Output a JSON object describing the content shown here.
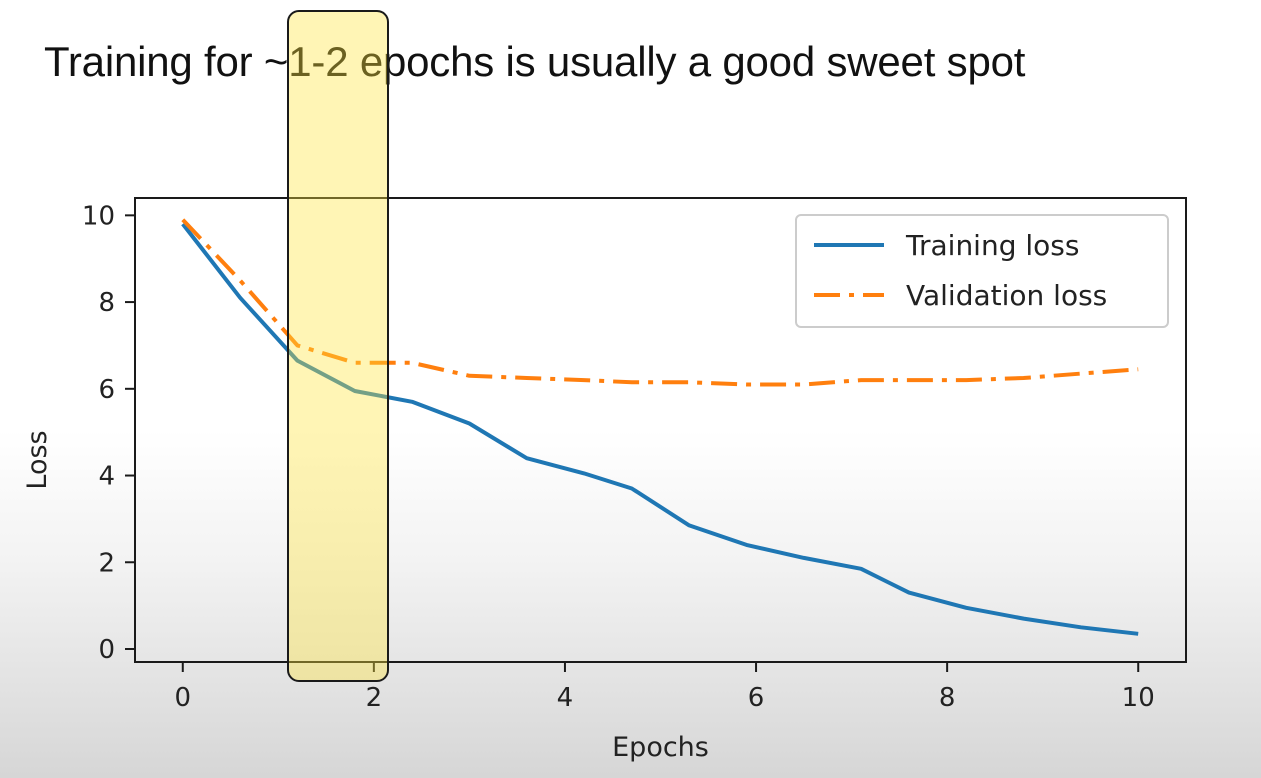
{
  "slide": {
    "title": "Training for ~1-2 epochs is usually a good sweet spot"
  },
  "chart_data": {
    "type": "line",
    "title": "",
    "xlabel": "Epochs",
    "ylabel": "Loss",
    "xlim": [
      -0.5,
      10.5
    ],
    "ylim": [
      -0.3,
      10.4
    ],
    "x_ticks": [
      0,
      2,
      4,
      6,
      8,
      10
    ],
    "y_ticks": [
      0,
      2,
      4,
      6,
      8,
      10
    ],
    "x_tick_labels": [
      "0",
      "2",
      "4",
      "6",
      "8",
      "10"
    ],
    "y_tick_labels": [
      "0",
      "2",
      "4",
      "6",
      "8",
      "10"
    ],
    "grid": false,
    "legend_position": "upper-right",
    "series": [
      {
        "name": "Training loss",
        "color": "#1f77b4",
        "line_style": "solid",
        "x": [
          0,
          0.6,
          1.2,
          1.8,
          2.4,
          3.0,
          3.6,
          4.2,
          4.7,
          5.3,
          5.9,
          6.5,
          7.1,
          7.6,
          8.2,
          8.8,
          9.4,
          10
        ],
        "y": [
          9.8,
          8.1,
          6.65,
          5.95,
          5.7,
          5.2,
          4.4,
          4.05,
          3.7,
          2.85,
          2.4,
          2.1,
          1.85,
          1.3,
          0.95,
          0.7,
          0.5,
          0.35
        ]
      },
      {
        "name": "Validation loss",
        "color": "#ff7f0e",
        "line_style": "dashdot",
        "x": [
          0,
          0.6,
          1.2,
          1.8,
          2.4,
          3.0,
          3.6,
          4.2,
          4.7,
          5.3,
          5.9,
          6.5,
          7.1,
          7.6,
          8.2,
          8.8,
          9.4,
          10
        ],
        "y": [
          9.9,
          8.5,
          7.0,
          6.6,
          6.6,
          6.3,
          6.25,
          6.2,
          6.15,
          6.15,
          6.1,
          6.1,
          6.2,
          6.2,
          6.2,
          6.25,
          6.35,
          6.45
        ]
      }
    ],
    "highlight": {
      "x_range": [
        1.0,
        2.2
      ],
      "color": "#ffe63c"
    }
  }
}
